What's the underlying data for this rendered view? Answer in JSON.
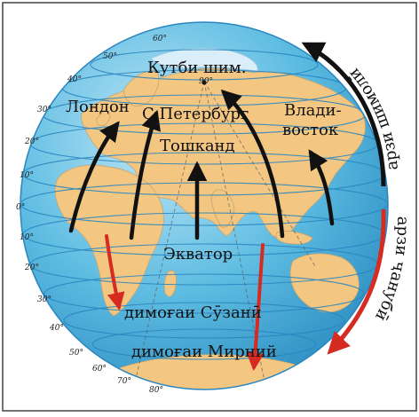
{
  "labels": {
    "north_pole": "Кутби шим.",
    "pole_degree": "90°",
    "london": "Лондон",
    "st_petersburg": "С.Петербург",
    "vladivostok_1": "Влади-",
    "vladivostok_2": "восток",
    "tashkent": "Тошканд",
    "equator": "Экватор",
    "cape": "димоғаи Сӯзанӣ",
    "mirny": "димоғаи Мирний",
    "north_latitude": "арзи шимолӣ",
    "south_latitude": "арзи ҷанубӣ"
  },
  "latitude_degrees_north": [
    "0°",
    "10°",
    "20°",
    "30°",
    "40°",
    "50°",
    "60°"
  ],
  "latitude_degrees_south": [
    "10°",
    "20°",
    "30°",
    "40°",
    "50°",
    "60°",
    "70°",
    "80°"
  ],
  "colors": {
    "ocean": "#4fb1d8",
    "land": "#f3c682",
    "grid": "#2b86c0",
    "north_arrow": "#111111",
    "south_arrow": "#d62b20",
    "frame": "#444444"
  }
}
